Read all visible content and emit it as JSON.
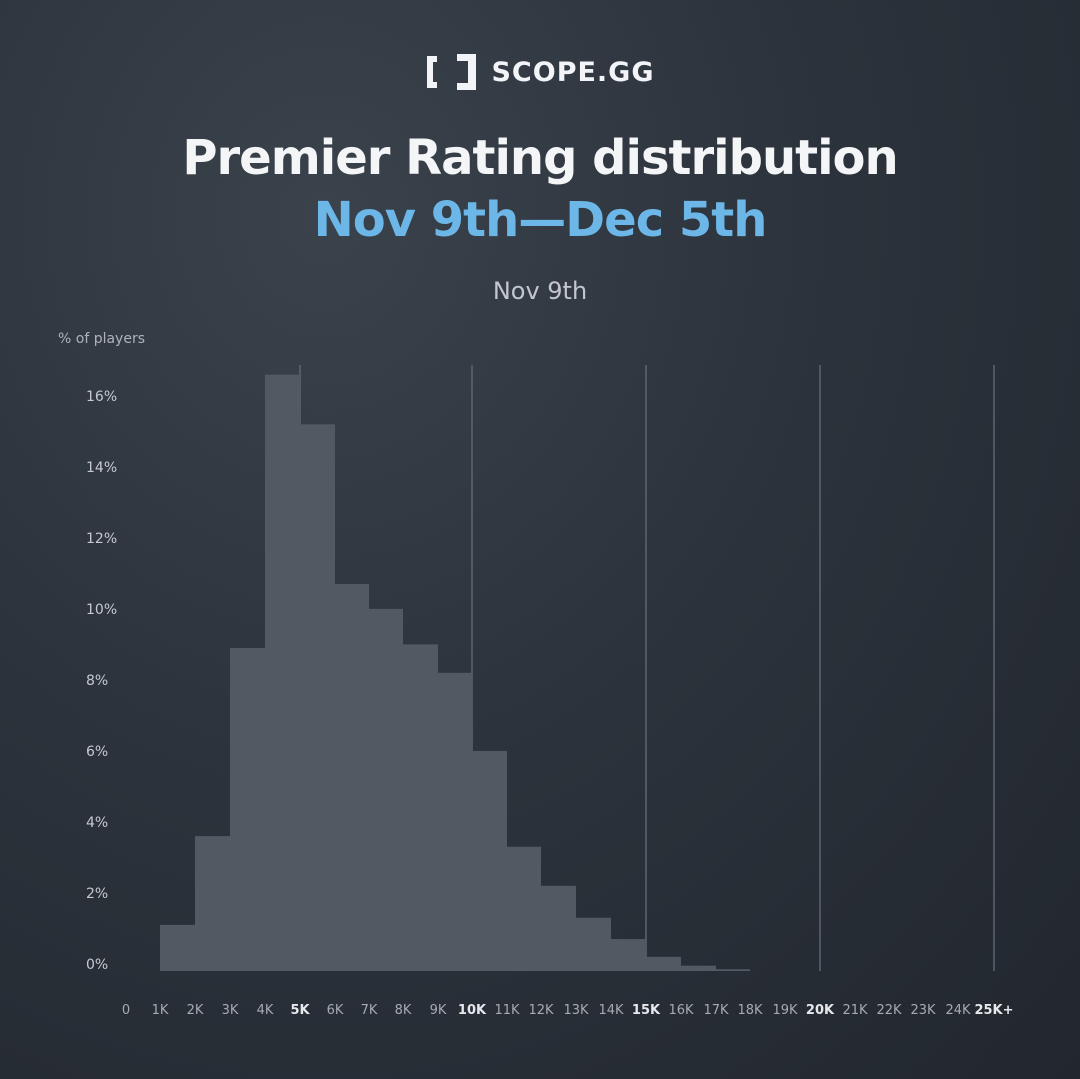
{
  "brand": {
    "name": "SCOPE.GG",
    "icon": "bracket-logo-icon"
  },
  "header": {
    "title": "Premier Rating distribution",
    "subtitle": "Nov 9th—Dec 5th",
    "period_label": "Nov 9th"
  },
  "colors": {
    "accent": "#6cb7e8",
    "bar": "#535963",
    "grid": "#5e656f",
    "text": "#c6cad0",
    "tick_highlight": "#e6e8ec"
  },
  "chart_data": {
    "type": "bar",
    "ylabel": "% of players",
    "xlabel": "",
    "x_ticks": [
      "0",
      "1K",
      "2K",
      "3K",
      "4K",
      "5K",
      "6K",
      "7K",
      "8K",
      "9K",
      "10K",
      "11K",
      "12K",
      "13K",
      "14K",
      "15K",
      "16K",
      "17K",
      "18K",
      "19K",
      "20K",
      "21K",
      "22K",
      "23K",
      "24K",
      "25K+"
    ],
    "highlighted_x_ticks": [
      "5K",
      "10K",
      "15K",
      "20K",
      "25K+"
    ],
    "y_ticks": [
      "0%",
      "2%",
      "4%",
      "6%",
      "8%",
      "10%",
      "12%",
      "14%",
      "16%"
    ],
    "ylim": [
      0,
      16
    ],
    "grid": "vertical lines at 5K, 10K, 15K, 20K, 25K+",
    "bins": [
      {
        "from": "1K",
        "to": "2K",
        "value": 1.3
      },
      {
        "from": "2K",
        "to": "3K",
        "value": 3.8
      },
      {
        "from": "3K",
        "to": "4K",
        "value": 9.1
      },
      {
        "from": "4K",
        "to": "5K",
        "value": 16.8
      },
      {
        "from": "5K",
        "to": "6K",
        "value": 15.4
      },
      {
        "from": "6K",
        "to": "7K",
        "value": 10.9
      },
      {
        "from": "7K",
        "to": "8K",
        "value": 10.2
      },
      {
        "from": "8K",
        "to": "9K",
        "value": 9.2
      },
      {
        "from": "9K",
        "to": "10K",
        "value": 8.4
      },
      {
        "from": "10K",
        "to": "11K",
        "value": 6.2
      },
      {
        "from": "11K",
        "to": "12K",
        "value": 3.5
      },
      {
        "from": "12K",
        "to": "13K",
        "value": 2.4
      },
      {
        "from": "13K",
        "to": "14K",
        "value": 1.5
      },
      {
        "from": "14K",
        "to": "15K",
        "value": 0.9
      },
      {
        "from": "15K",
        "to": "16K",
        "value": 0.4
      },
      {
        "from": "16K",
        "to": "17K",
        "value": 0.15
      },
      {
        "from": "17K",
        "to": "18K",
        "value": 0.05
      }
    ]
  }
}
